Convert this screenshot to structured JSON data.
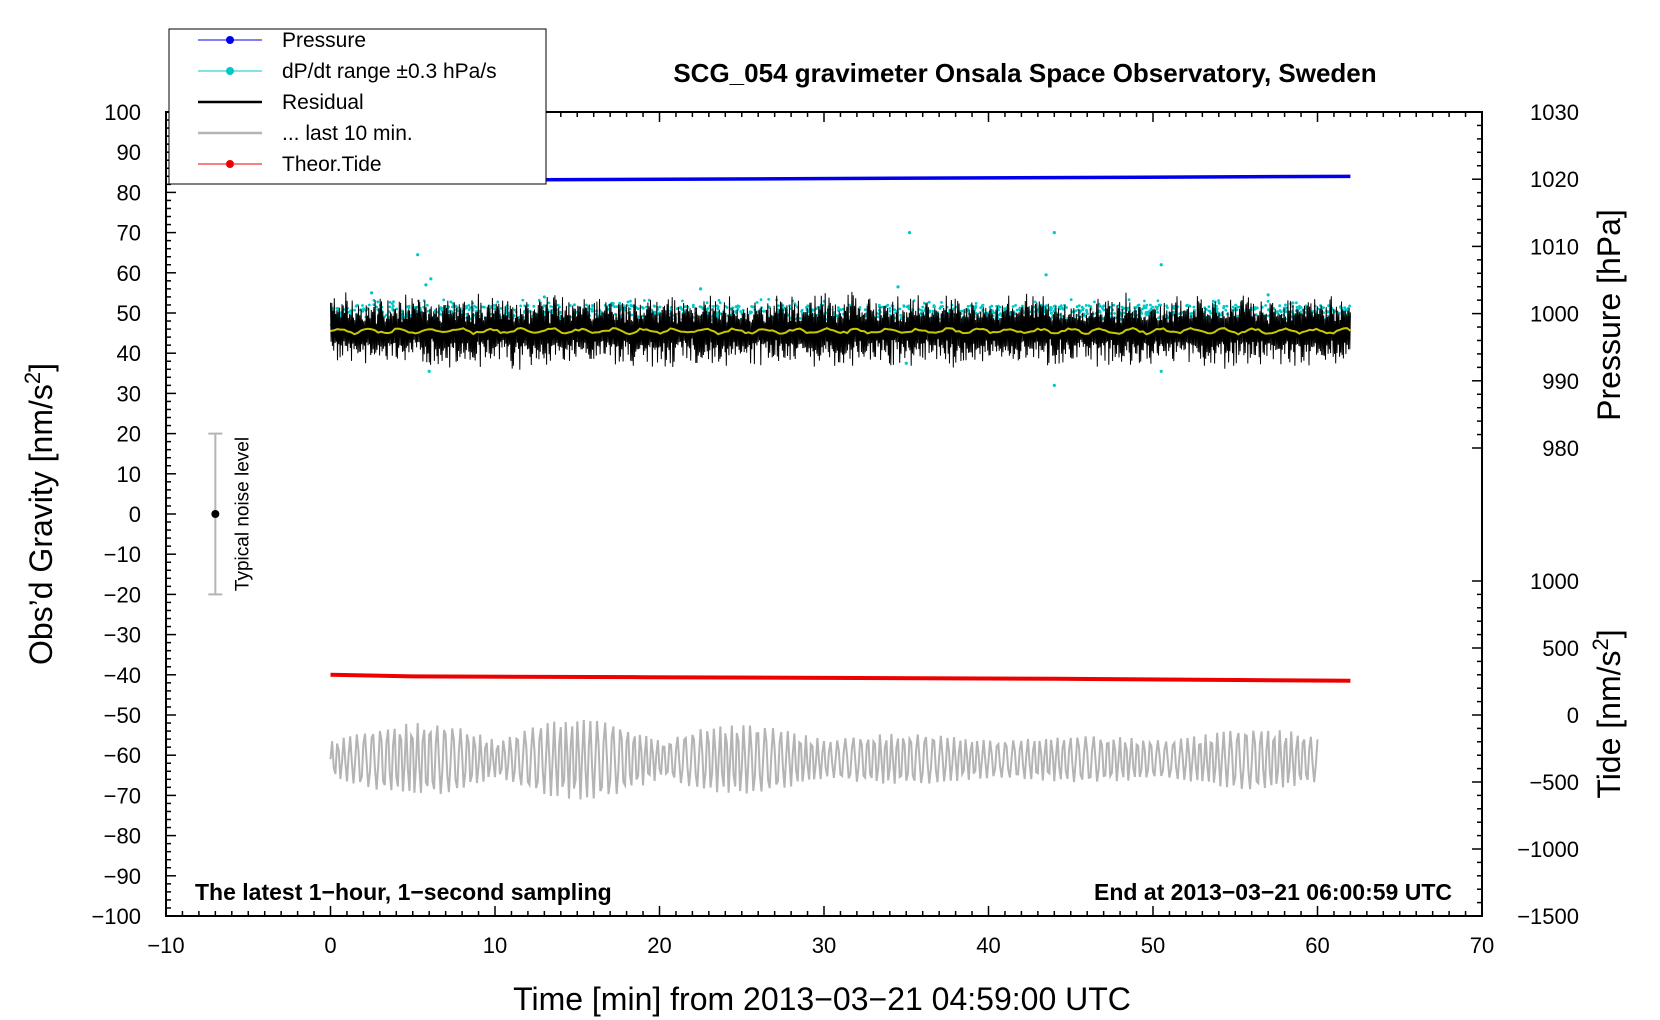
{
  "chart_data": {
    "type": "line",
    "title": "SCG_054 gravimeter Onsala Space Observatory, Sweden",
    "xlabel": "Time [min] from 2013−03−21 04:59:00 UTC",
    "ylabel_left": "Obs’d Gravity [nm/s²]",
    "ylabel_left_main": "Obs’d Gravity [nm/s",
    "ylabel_right_pressure": "Pressure [hPa]",
    "ylabel_right_tide": "Tide [nm/s²]",
    "ylabel_right_tide_main": "Tide [nm/s",
    "superscript": "2",
    "ylabel_close": "]",
    "xlim": [
      -10,
      70
    ],
    "ylim": [
      -100,
      100
    ],
    "pressure_lim": [
      970,
      1030
    ],
    "tide_lim": [
      -1500,
      1500
    ],
    "x_ticks": [
      "−10",
      "0",
      "10",
      "20",
      "30",
      "40",
      "50",
      "60",
      "70"
    ],
    "x_tick_values": [
      -10,
      0,
      10,
      20,
      30,
      40,
      50,
      60,
      70
    ],
    "y_ticks_left": [
      "100",
      "90",
      "80",
      "70",
      "60",
      "50",
      "40",
      "30",
      "20",
      "10",
      "0",
      "−10",
      "−20",
      "−30",
      "−40",
      "−50",
      "−60",
      "−70",
      "−80",
      "−90",
      "−100"
    ],
    "y_tick_values_left": [
      100,
      90,
      80,
      70,
      60,
      50,
      40,
      30,
      20,
      10,
      0,
      -10,
      -20,
      -30,
      -40,
      -50,
      -60,
      -70,
      -80,
      -90,
      -100
    ],
    "pressure_ticks": [
      "1030",
      "1020",
      "1010",
      "1000",
      "990",
      "980"
    ],
    "pressure_tick_values": [
      1030,
      1020,
      1010,
      1000,
      990,
      980
    ],
    "tide_ticks": [
      "1000",
      "500",
      "0",
      "−500",
      "−1000",
      "−1500"
    ],
    "tide_tick_values": [
      1000,
      500,
      0,
      -500,
      -1000,
      -1500
    ],
    "series": [
      {
        "name": "Pressure",
        "color": "#0000ee",
        "x": [
          0,
          62
        ],
        "values": [
          83,
          84
        ]
      },
      {
        "name": "dP/dt range ±0.3 hPa/s",
        "color": "#00c8c8",
        "x_range": [
          0,
          62
        ],
        "center": 50.2,
        "spread": 1.8
      },
      {
        "name": "Residual",
        "color": "#000000",
        "x_range": [
          0,
          62
        ],
        "center": 45.5,
        "spread": 10
      },
      {
        "name": "... last 10 min.",
        "color": "#b4b4b4",
        "x_range": [
          0,
          60
        ],
        "center": -61,
        "spread": 10
      },
      {
        "name": "Theor.Tide",
        "color": "#ee0000",
        "x": [
          0,
          5,
          19,
          32,
          44,
          55,
          62
        ],
        "values": [
          -40,
          -40.4,
          -40.6,
          -40.8,
          -41,
          -41.3,
          -41.5
        ]
      },
      {
        "name": "Running mean",
        "color": "#c8c800",
        "x_range": [
          0,
          62
        ],
        "center": 45.5
      }
    ],
    "outliers": [
      {
        "x": 5.3,
        "y": 64.5
      },
      {
        "x": 5.8,
        "y": 57
      },
      {
        "x": 6.1,
        "y": 58.5
      },
      {
        "x": 35.2,
        "y": 70
      },
      {
        "x": 44,
        "y": 70
      },
      {
        "x": 43.5,
        "y": 59.5
      },
      {
        "x": 50.5,
        "y": 62
      },
      {
        "x": 22.5,
        "y": 56
      },
      {
        "x": 34.5,
        "y": 56.5
      },
      {
        "x": 6,
        "y": 35.5
      },
      {
        "x": 50.5,
        "y": 35.5
      },
      {
        "x": 44,
        "y": 32
      },
      {
        "x": 35,
        "y": 37.5
      },
      {
        "x": 2.5,
        "y": 55
      },
      {
        "x": 13,
        "y": 54
      },
      {
        "x": 57,
        "y": 54.5
      },
      {
        "x": 58.5,
        "y": 52.5
      }
    ],
    "noise_bar": {
      "x": -7,
      "center": 0,
      "low": -20,
      "high": 20,
      "label": "Typical noise level"
    },
    "legend": {
      "placement": "top-left",
      "entries": [
        {
          "label": "Pressure",
          "color": "#0000ee",
          "marker": "dot"
        },
        {
          "label": "dP/dt range ±0.3 hPa/s",
          "color": "#00c8c8",
          "marker": "dot"
        },
        {
          "label": "Residual",
          "color": "#000000",
          "marker": "line"
        },
        {
          "label": "... last 10 min.",
          "color": "#b4b4b4",
          "marker": "line"
        },
        {
          "label": "Theor.Tide",
          "color": "#ee0000",
          "marker": "dot"
        }
      ]
    },
    "annotations": {
      "bottom_left": "The latest 1−hour, 1−second sampling",
      "bottom_right": "End at 2013−03−21 06:00:59 UTC"
    }
  }
}
